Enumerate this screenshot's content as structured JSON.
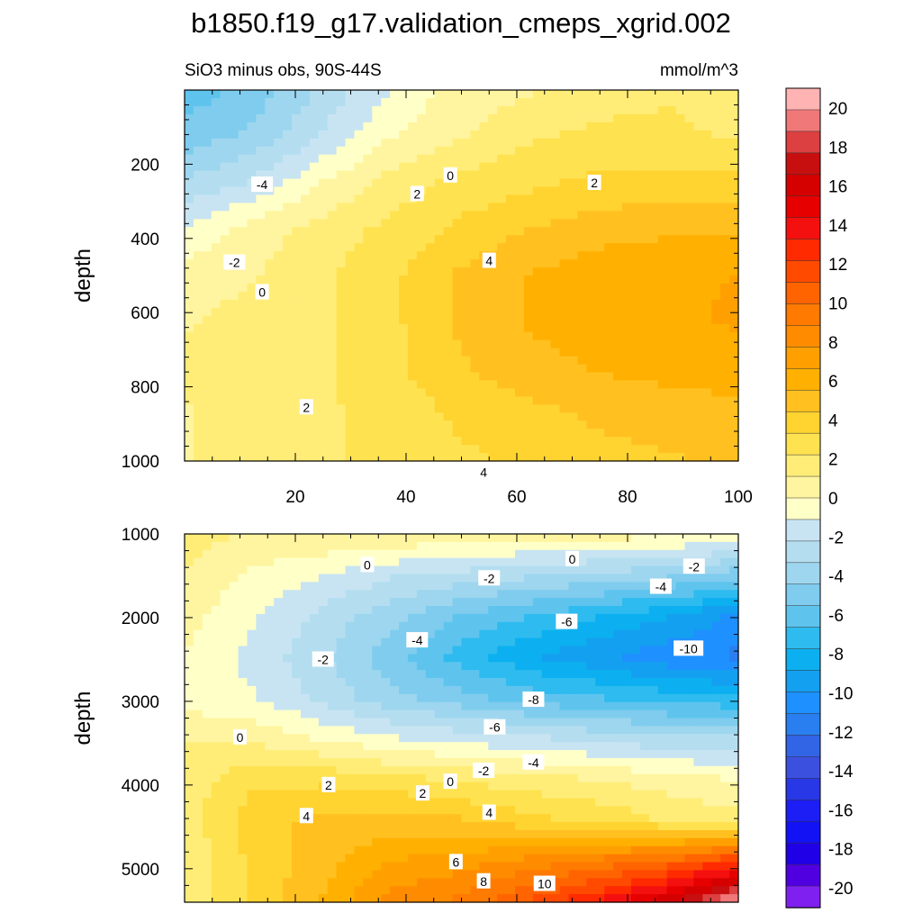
{
  "chart_data": {
    "type": "heatmap",
    "title": "b1850.f19_g17.validation_cmeps_xgrid.002",
    "subtitle_left": "SiO3 minus obs, 90S-44S",
    "subtitle_right": "mmol/m^3",
    "panels": [
      {
        "id": "upper",
        "ylabel": "depth",
        "xlim": [
          0,
          100
        ],
        "ylim": [
          1000,
          0
        ],
        "x_ticks": [
          20,
          40,
          60,
          80,
          100
        ],
        "y_ticks": [
          200,
          400,
          600,
          800,
          1000
        ],
        "grid": [
          [
            -6,
            -5,
            -3,
            -1,
            0.5,
            1,
            1.5,
            2,
            1.2
          ],
          [
            -5,
            -4,
            -2,
            0,
            1,
            2,
            2.5,
            2.5,
            2
          ],
          [
            -3,
            -2,
            0,
            1.5,
            2.5,
            3,
            3.5,
            3.5,
            3.5
          ],
          [
            -1,
            0.5,
            1.5,
            2.5,
            3.5,
            4.3,
            5,
            5.2,
            5.2
          ],
          [
            0.5,
            1,
            2,
            3,
            4.5,
            5.5,
            6,
            6.3,
            6.5
          ],
          [
            1,
            1.5,
            2,
            3,
            4.5,
            5.5,
            6,
            6.3,
            6.6
          ],
          [
            1.2,
            1.5,
            2,
            3,
            4.2,
            5,
            5.5,
            5.8,
            6
          ],
          [
            1,
            1.5,
            2,
            2.5,
            3.5,
            4,
            4.5,
            4.8,
            5
          ],
          [
            1,
            1.5,
            2,
            2.5,
            3,
            3.5,
            4,
            4.2,
            4.5
          ]
        ],
        "contour_labels": [
          {
            "text": "-4",
            "x": 14,
            "y": 255
          },
          {
            "text": "-2",
            "x": 9,
            "y": 465
          },
          {
            "text": "0",
            "x": 14,
            "y": 545
          },
          {
            "text": "0",
            "x": 48,
            "y": 230
          },
          {
            "text": "2",
            "x": 74,
            "y": 250
          },
          {
            "text": "2",
            "x": 42,
            "y": 280
          },
          {
            "text": "4",
            "x": 55,
            "y": 460
          },
          {
            "text": "2",
            "x": 22,
            "y": 855
          },
          {
            "text": "4",
            "x": 54,
            "y": 1030
          }
        ]
      },
      {
        "id": "lower",
        "ylabel": "depth",
        "xlim": [
          0,
          100
        ],
        "ylim": [
          5400,
          1000
        ],
        "x_ticks": [],
        "y_ticks": [
          1000,
          2000,
          3000,
          4000,
          5000
        ],
        "grid": [
          [
            1.5,
            1,
            1,
            1,
            0.8,
            0.6,
            0.5,
            0.3,
            0
          ],
          [
            1,
            -0.3,
            -1,
            -2,
            -2.5,
            -3,
            -3.5,
            -4,
            -5
          ],
          [
            0.5,
            -1,
            -2.5,
            -4,
            -5.5,
            -6.5,
            -7.5,
            -8.5,
            -10
          ],
          [
            0,
            -1.5,
            -3,
            -5,
            -7,
            -8.5,
            -9.5,
            -10.5,
            -11
          ],
          [
            -0.5,
            -1,
            -2.5,
            -4,
            -5,
            -6,
            -6.5,
            -7,
            -7.5
          ],
          [
            1,
            0.8,
            -0.2,
            -1,
            -1.5,
            -2,
            -2.5,
            -3,
            -3
          ],
          [
            1.5,
            3,
            3,
            2.5,
            2,
            1.5,
            1,
            0.5,
            0
          ],
          [
            1.5,
            4,
            4.5,
            4.8,
            4.5,
            3.5,
            3,
            2,
            1.5
          ],
          [
            1.2,
            3.5,
            5,
            6.5,
            7,
            8,
            9,
            10,
            12
          ],
          [
            1.2,
            3.5,
            5.5,
            8,
            9,
            11,
            13,
            16,
            20
          ]
        ],
        "contour_labels": [
          {
            "text": "0",
            "x": 33,
            "y": 1370
          },
          {
            "text": "0",
            "x": 70,
            "y": 1300
          },
          {
            "text": "-2",
            "x": 55,
            "y": 1530
          },
          {
            "text": "-2",
            "x": 92,
            "y": 1390
          },
          {
            "text": "-4",
            "x": 86,
            "y": 1630
          },
          {
            "text": "-6",
            "x": 69,
            "y": 2050
          },
          {
            "text": "-4",
            "x": 42,
            "y": 2270
          },
          {
            "text": "-2",
            "x": 25,
            "y": 2500
          },
          {
            "text": "-10",
            "x": 91,
            "y": 2370
          },
          {
            "text": "-8",
            "x": 63,
            "y": 2980
          },
          {
            "text": "-6",
            "x": 56,
            "y": 3310
          },
          {
            "text": "0",
            "x": 10,
            "y": 3430
          },
          {
            "text": "-4",
            "x": 63,
            "y": 3730
          },
          {
            "text": "-2",
            "x": 54,
            "y": 3830
          },
          {
            "text": "0",
            "x": 48,
            "y": 3960
          },
          {
            "text": "2",
            "x": 26,
            "y": 4000
          },
          {
            "text": "2",
            "x": 43,
            "y": 4100
          },
          {
            "text": "4",
            "x": 22,
            "y": 4370
          },
          {
            "text": "4",
            "x": 55,
            "y": 4330
          },
          {
            "text": "6",
            "x": 49,
            "y": 4920
          },
          {
            "text": "8",
            "x": 54,
            "y": 5150
          },
          {
            "text": "10",
            "x": 65,
            "y": 5180
          }
        ]
      }
    ],
    "colorbar": {
      "labels": [
        "20",
        "18",
        "16",
        "14",
        "12",
        "10",
        "8",
        "6",
        "4",
        "2",
        "0",
        "-2",
        "-4",
        "-6",
        "-8",
        "-10",
        "-12",
        "-14",
        "-16",
        "-18",
        "-20"
      ],
      "colors_top_to_bottom": [
        "#ffb3b3",
        "#f07878",
        "#dc4040",
        "#c80f0f",
        "#d50000",
        "#e60000",
        "#f51010",
        "#ff2a00",
        "#ff4a00",
        "#ff6400",
        "#ff7a00",
        "#ff8c00",
        "#ffa000",
        "#ffb000",
        "#ffc020",
        "#ffd330",
        "#ffe250",
        "#ffed78",
        "#fff5a0",
        "#ffffc8",
        "#c8e4f2",
        "#b4def0",
        "#9ed6ef",
        "#7fccee",
        "#5ec4ee",
        "#2ebbef",
        "#0cb0f0",
        "#14a0f0",
        "#1e90ff",
        "#2a7ff0",
        "#3264e6",
        "#3c50e0",
        "#2838e6",
        "#1c1ef5",
        "#1212f5",
        "#2000e6",
        "#5000e0",
        "#8020f0"
      ]
    }
  }
}
